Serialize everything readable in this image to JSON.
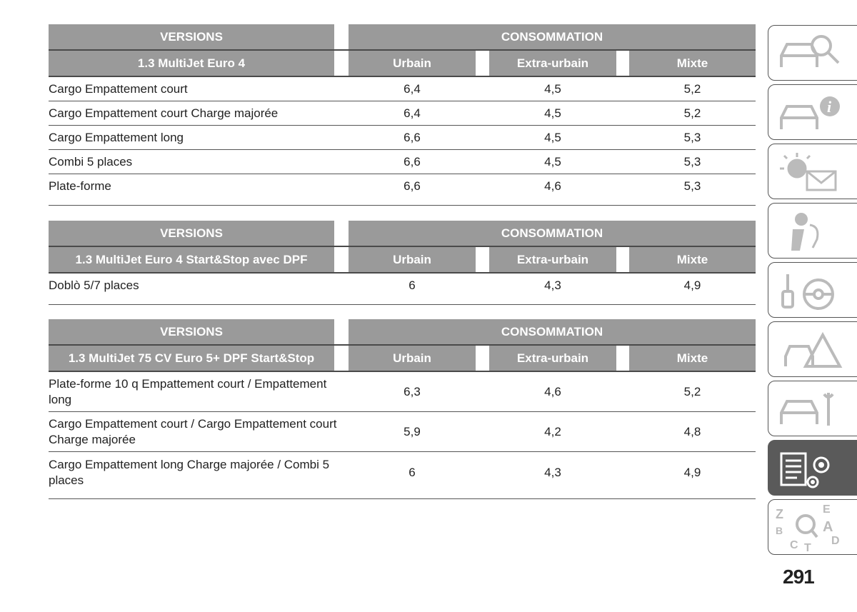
{
  "tables": [
    {
      "versions_label": "VERSIONS",
      "consumption_label": "CONSOMMATION",
      "engine": "1.3 MultiJet Euro 4",
      "cols": [
        "Urbain",
        "Extra-urbain",
        "Mixte"
      ],
      "rows": [
        {
          "name": "Cargo Empattement court",
          "v": [
            "6,4",
            "4,5",
            "5,2"
          ]
        },
        {
          "name": "Cargo Empattement court Charge majorée",
          "v": [
            "6,4",
            "4,5",
            "5,2"
          ]
        },
        {
          "name": "Cargo Empattement long",
          "v": [
            "6,6",
            "4,5",
            "5,3"
          ]
        },
        {
          "name": "Combi 5 places",
          "v": [
            "6,6",
            "4,5",
            "5,3"
          ]
        },
        {
          "name": "Plate-forme",
          "v": [
            "6,6",
            "4,6",
            "5,3"
          ]
        }
      ]
    },
    {
      "versions_label": "VERSIONS",
      "consumption_label": "CONSOMMATION",
      "engine": "1.3 MultiJet Euro 4 Start&Stop avec DPF",
      "cols": [
        "Urbain",
        "Extra-urbain",
        "Mixte"
      ],
      "rows": [
        {
          "name": "Doblò 5/7 places",
          "v": [
            "6",
            "4,3",
            "4,9"
          ]
        }
      ]
    },
    {
      "versions_label": "VERSIONS",
      "consumption_label": "CONSOMMATION",
      "engine": "1.3 MultiJet 75 CV Euro 5+ DPF Start&Stop",
      "cols": [
        "Urbain",
        "Extra-urbain",
        "Mixte"
      ],
      "rows": [
        {
          "name": "Plate-forme 10 q Empattement court / Empattement long",
          "v": [
            "6,3",
            "4,6",
            "5,2"
          ]
        },
        {
          "name": "Cargo Empattement court / Cargo Empattement court Charge majorée",
          "v": [
            "5,9",
            "4,2",
            "4,8"
          ]
        },
        {
          "name": "Cargo Empattement long Charge majorée / Combi 5 places",
          "v": [
            "6",
            "4,3",
            "4,9"
          ]
        }
      ]
    }
  ],
  "sidebar": {
    "tabs": [
      {
        "icon": "car-search-icon"
      },
      {
        "icon": "car-info-icon"
      },
      {
        "icon": "warning-light-message-icon"
      },
      {
        "icon": "seat-airbag-icon"
      },
      {
        "icon": "key-steering-wheel-icon"
      },
      {
        "icon": "car-emergency-triangle-icon"
      },
      {
        "icon": "car-wrench-icon"
      },
      {
        "icon": "specs-gears-icon"
      },
      {
        "icon": "alphabetical-index-icon"
      }
    ],
    "index_letters": [
      "Z",
      "E",
      "B",
      "A",
      "C",
      "T",
      "D"
    ]
  },
  "page_number": "291"
}
